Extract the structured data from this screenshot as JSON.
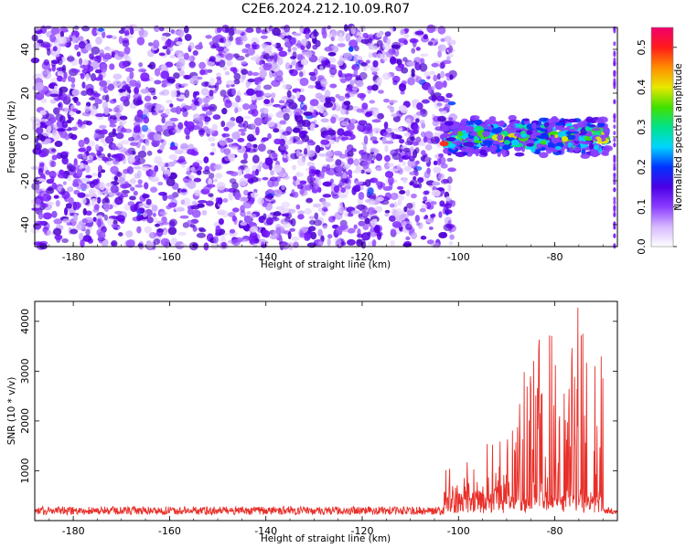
{
  "title": "C2E6.2024.212.10.09.R07",
  "chart_data": [
    {
      "type": "heatmap",
      "name": "spectrogram",
      "xlabel": "Height of straight line (km)",
      "ylabel": "Frequency (Hz)",
      "xlim": [
        -188,
        -67
      ],
      "ylim": [
        -50,
        50
      ],
      "xticks": [
        -180,
        -160,
        -140,
        -120,
        -100,
        -80
      ],
      "yticks": [
        -40,
        -20,
        0,
        20,
        40
      ],
      "colorbar": {
        "label": "Normalized spectral amplitude",
        "range": [
          0,
          0.55
        ],
        "ticks": [
          0.0,
          0.1,
          0.2,
          0.3,
          0.4,
          0.5
        ],
        "colormap": [
          "#ffffff",
          "#d6b8ff",
          "#8a3cff",
          "#4b00e6",
          "#0033ff",
          "#00d5ff",
          "#00e38a",
          "#43e000",
          "#e8e800",
          "#ff8c00",
          "#ff1a1a",
          "#f0006e"
        ]
      },
      "regions": [
        {
          "label": "noise",
          "x_range": [
            -188,
            -103
          ],
          "f_range": [
            -50,
            50
          ],
          "amplitude": 0.05
        },
        {
          "label": "signal band",
          "x_range": [
            -103,
            -67
          ],
          "f_range": [
            -9,
            9
          ],
          "amplitude_peak": 0.42
        }
      ]
    },
    {
      "type": "line",
      "name": "snr",
      "xlabel": "Height of straight line (km)",
      "ylabel": "SNR (10 * v/v)",
      "xlim": [
        -188,
        -67
      ],
      "ylim": [
        0,
        4400
      ],
      "xticks": [
        -180,
        -160,
        -140,
        -120,
        -100,
        -80
      ],
      "yticks": [
        1000,
        2000,
        3000,
        4000
      ],
      "color": "#e8302a",
      "series": [
        {
          "name": "SNR",
          "segments": [
            {
              "x_range": [
                -188,
                -103
              ],
              "baseline": 200,
              "jitter": 140
            },
            {
              "x_range": [
                -103,
                -90
              ],
              "peaks": [
                900,
                1400,
                1700
              ]
            },
            {
              "x_range": [
                -90,
                -80
              ],
              "peaks": [
                2300,
                3300,
                3900
              ]
            },
            {
              "x_range": [
                -80,
                -70
              ],
              "peaks": [
                3900,
                4350,
                3200
              ]
            },
            {
              "x_range": [
                -70,
                -67
              ],
              "baseline": 200,
              "jitter": 120
            }
          ]
        }
      ]
    }
  ]
}
